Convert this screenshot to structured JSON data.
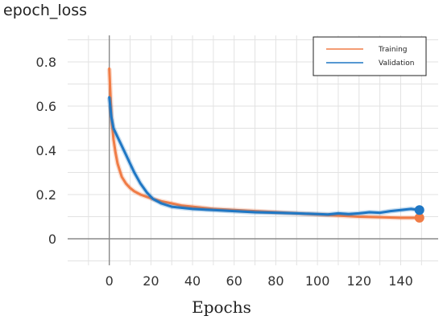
{
  "chart_data": {
    "type": "line",
    "title": "epoch_loss",
    "xlabel": "Epochs",
    "ylabel": "",
    "xlim": [
      -20,
      158
    ],
    "ylim": [
      -0.12,
      0.92
    ],
    "xticks": [
      0,
      20,
      40,
      60,
      80,
      100,
      120,
      140
    ],
    "yticks": [
      0,
      0.2,
      0.4,
      0.6,
      0.8
    ],
    "tick_labels_x": [
      "0",
      "20",
      "40",
      "60",
      "80",
      "100",
      "120",
      "140"
    ],
    "tick_labels_y": [
      "0",
      "0.2",
      "0.4",
      "0.6",
      "0.8"
    ],
    "grid": true,
    "legend_position": "top-right",
    "series": [
      {
        "name": "Training",
        "color": "#f07c46",
        "x": [
          0,
          1,
          2,
          3,
          4,
          5,
          6,
          8,
          10,
          12,
          15,
          18,
          21,
          25,
          30,
          35,
          40,
          50,
          60,
          70,
          80,
          90,
          100,
          110,
          120,
          130,
          140,
          149
        ],
        "y": [
          0.77,
          0.55,
          0.45,
          0.39,
          0.34,
          0.31,
          0.28,
          0.25,
          0.23,
          0.215,
          0.2,
          0.19,
          0.18,
          0.17,
          0.16,
          0.15,
          0.145,
          0.135,
          0.13,
          0.125,
          0.12,
          0.115,
          0.11,
          0.105,
          0.1,
          0.098,
          0.095,
          0.095
        ],
        "end_marker": true
      },
      {
        "name": "Validation",
        "color": "#1f77c4",
        "x": [
          0,
          1,
          2,
          4,
          6,
          8,
          10,
          12,
          15,
          18,
          21,
          25,
          30,
          35,
          40,
          50,
          60,
          70,
          80,
          90,
          100,
          105,
          110,
          115,
          120,
          125,
          130,
          135,
          140,
          145,
          149
        ],
        "y": [
          0.64,
          0.55,
          0.5,
          0.46,
          0.42,
          0.38,
          0.34,
          0.3,
          0.25,
          0.21,
          0.18,
          0.16,
          0.145,
          0.14,
          0.135,
          0.13,
          0.125,
          0.12,
          0.118,
          0.115,
          0.112,
          0.11,
          0.115,
          0.112,
          0.115,
          0.12,
          0.118,
          0.125,
          0.13,
          0.135,
          0.13
        ],
        "end_marker": true
      }
    ]
  }
}
